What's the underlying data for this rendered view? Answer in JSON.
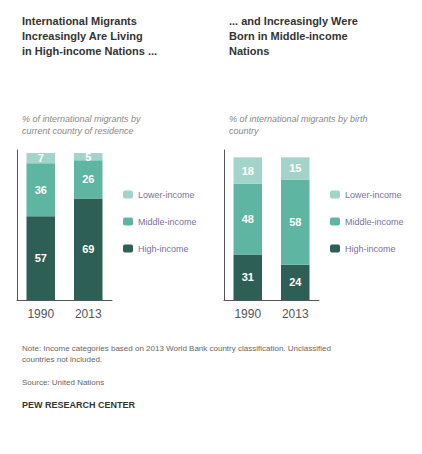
{
  "chart_data": [
    {
      "type": "bar",
      "title": "International Migrants\nIncreasingly Are Living\nin High-income Nations ...",
      "subtitle": "% of international migrants by\ncurrent country of residence",
      "categories": [
        "1990",
        "2013"
      ],
      "series": [
        {
          "name": "High-income",
          "color": "#2d5f54",
          "values": [
            57,
            69
          ]
        },
        {
          "name": "Middle-income",
          "color": "#5eb5a2",
          "values": [
            36,
            26
          ]
        },
        {
          "name": "Lower-income",
          "color": "#a3d4ca",
          "values": [
            7,
            5
          ]
        }
      ],
      "stacked": true,
      "data_labels": true,
      "ylim": [
        0,
        102
      ],
      "yticks": [],
      "grid": false,
      "legend": "right",
      "tick_labels": "x"
    },
    {
      "type": "bar",
      "title": "... and Increasingly Were\nBorn in Middle-income\nNations",
      "subtitle": "% of international migrants by birth\ncountry",
      "categories": [
        "1990",
        "2013"
      ],
      "series": [
        {
          "name": "High-income",
          "color": "#2d5f54",
          "values": [
            31,
            24
          ]
        },
        {
          "name": "Middle-income",
          "color": "#5eb5a2",
          "values": [
            48,
            58
          ]
        },
        {
          "name": "Lower-income",
          "color": "#a3d4ca",
          "values": [
            18,
            15
          ]
        }
      ],
      "stacked": true,
      "data_labels": true,
      "ylim": [
        0,
        102
      ],
      "yticks": [],
      "grid": false,
      "legend": "right",
      "tick_labels": "x"
    }
  ],
  "annotations": [
    "Note: Income categories based on 2013 World Bank country classification. Unclassified\ncountries not included.",
    "Source: United Nations",
    "PEW RESEARCH CENTER"
  ]
}
